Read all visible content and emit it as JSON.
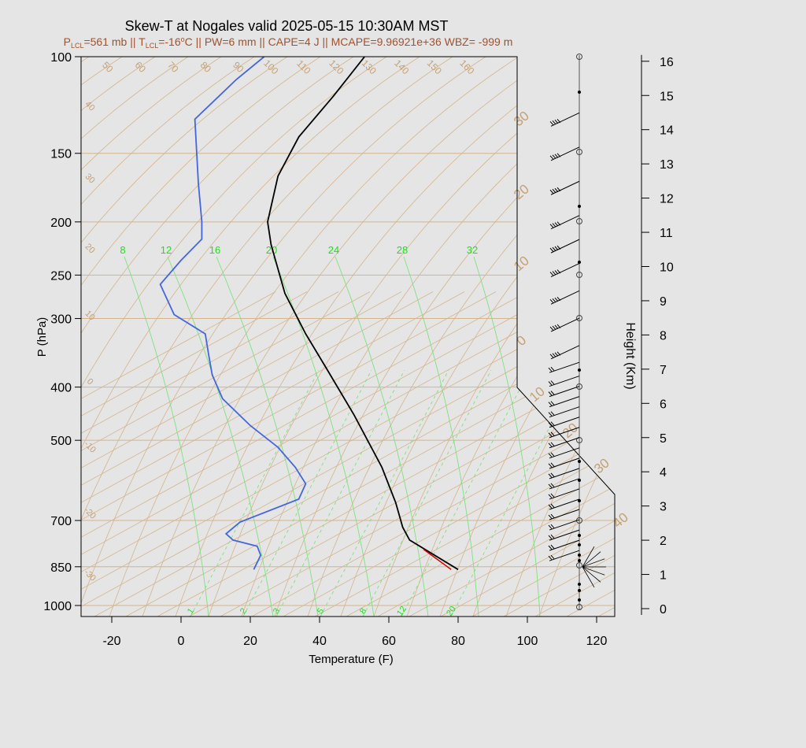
{
  "chart_data": {
    "type": "line",
    "title": "Skew-T at Nogales valid 2025-05-15 10:30AM MST",
    "subtitle": {
      "plcl_label": "P",
      "plcl_sub": "LCL",
      "plcl_value": "=561 mb",
      "sep1": " || ",
      "tlcl_label": "T",
      "tlcl_sub": "LCL",
      "tlcl_value": "=-16",
      "tlcl_unit_sup": "o",
      "tlcl_unit": "C",
      "rest": " || PW=6 mm || CAPE=4 J || MCAPE=9.96921e+36 WBZ= -999 m"
    },
    "xlabel": "Temperature (F)",
    "ylabel": "P (hPa)",
    "y2label": "Height (Km)",
    "xlim": [
      -28,
      125
    ],
    "x_ticks": [
      -20,
      0,
      20,
      40,
      60,
      80,
      100,
      120
    ],
    "y_scale": "log",
    "ylim": [
      1040,
      100
    ],
    "pressure_ticks": [
      100,
      150,
      200,
      250,
      300,
      400,
      500,
      700,
      850,
      1000
    ],
    "height_ticks": [
      0,
      1,
      2,
      3,
      4,
      5,
      6,
      7,
      8,
      9,
      10,
      11,
      12,
      13,
      14,
      15,
      16
    ],
    "mixing_ratio_labels": [
      "8",
      "12",
      "16",
      "20",
      "24",
      "28",
      "32"
    ],
    "mixing_ratio_bottom_labels": [
      "1",
      "2",
      "3",
      "5",
      "8",
      "12",
      "20"
    ],
    "isotherm_labels": [
      "50",
      "60",
      "70",
      "80",
      "90",
      "100",
      "110",
      "120",
      "130",
      "140",
      "150",
      "160"
    ],
    "theta_labels": [
      "40",
      "30",
      "20",
      "10",
      "0",
      "-10",
      "-20",
      "-30"
    ],
    "right_labels": [
      "30",
      "20",
      "10",
      "0",
      "10",
      "20",
      "30",
      "40"
    ],
    "series": [
      {
        "color": "#000000",
        "points": [
          [
            80,
            860
          ],
          [
            66,
            760
          ],
          [
            64,
            720
          ],
          [
            62,
            650
          ],
          [
            58,
            560
          ],
          [
            50,
            450
          ],
          [
            42,
            370
          ],
          [
            36,
            320
          ],
          [
            30,
            270
          ],
          [
            26,
            220
          ],
          [
            25,
            200
          ],
          [
            28,
            165
          ],
          [
            34,
            140
          ],
          [
            44,
            118
          ],
          [
            53,
            100
          ]
        ]
      },
      {
        "color": "#4466dd",
        "points": [
          [
            21,
            860
          ],
          [
            23,
            810
          ],
          [
            22,
            780
          ],
          [
            15,
            760
          ],
          [
            13,
            740
          ],
          [
            17,
            705
          ],
          [
            34,
            640
          ],
          [
            36,
            600
          ],
          [
            33,
            560
          ],
          [
            28,
            515
          ],
          [
            20,
            470
          ],
          [
            12,
            420
          ],
          [
            9,
            380
          ],
          [
            8,
            350
          ],
          [
            7,
            320
          ],
          [
            -2,
            295
          ],
          [
            -6,
            260
          ],
          [
            0,
            235
          ],
          [
            6,
            215
          ],
          [
            6,
            200
          ],
          [
            5,
            170
          ],
          [
            4,
            130
          ],
          [
            16,
            110
          ],
          [
            24,
            100
          ]
        ]
      },
      {
        "color": "#cc0000",
        "points": [
          [
            78,
            860
          ],
          [
            70,
            790
          ]
        ]
      }
    ],
    "wind_barbs_km": [
      14.1,
      13.1,
      12.1,
      11.1,
      10.4,
      9.7,
      8.9,
      8.1,
      7.3,
      6.9,
      6.5,
      6.2,
      5.9,
      5.6,
      5.3,
      5.0,
      4.7,
      4.4,
      4.1,
      3.8,
      3.5,
      3.2,
      2.9,
      2.6,
      2.3,
      2.0,
      1.7,
      1.4
    ]
  }
}
